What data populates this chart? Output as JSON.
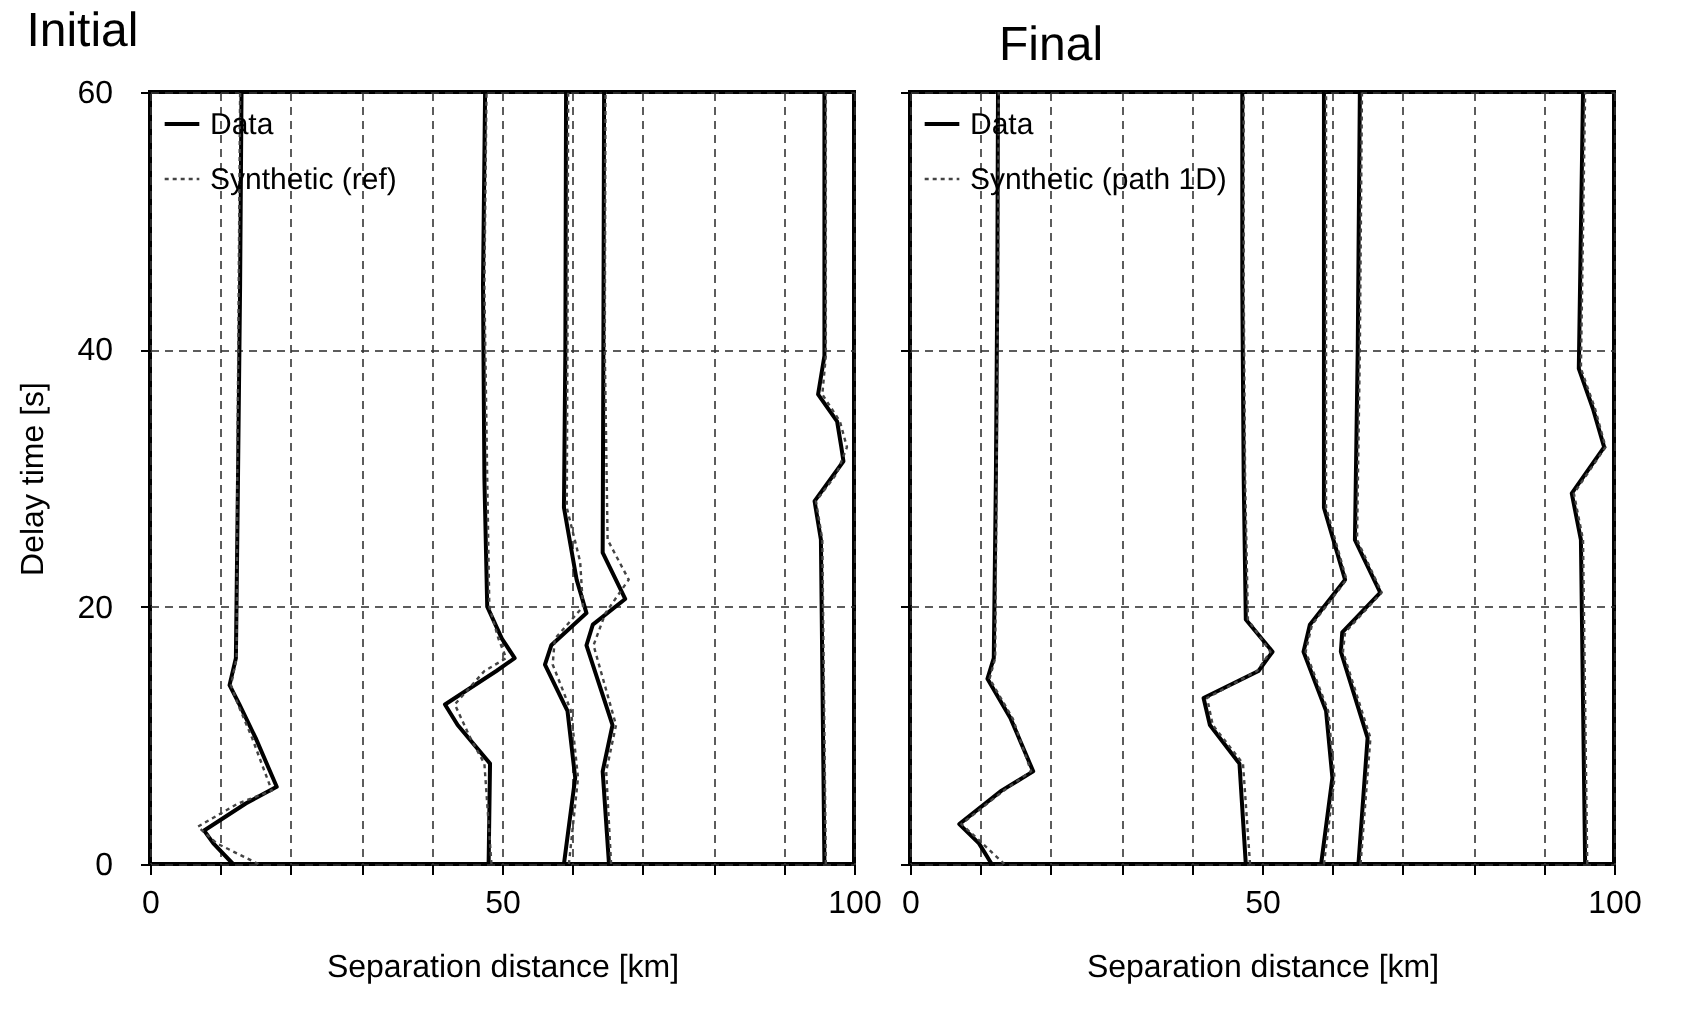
{
  "chart_data": [
    {
      "type": "line",
      "title": "Initial",
      "xlabel": "Separation distance [km]",
      "ylabel": "Delay time [s]",
      "xlim": [
        0,
        100
      ],
      "ylim": [
        0,
        60
      ],
      "xticks": [
        0,
        {
          "value": 10,
          "label": null
        },
        {
          "value": 20,
          "label": null
        },
        {
          "value": 30,
          "label": null
        },
        {
          "value": 40,
          "label": null
        },
        50,
        {
          "value": 60,
          "label": null
        },
        {
          "value": 70,
          "label": null
        },
        {
          "value": 80,
          "label": null
        },
        {
          "value": 90,
          "label": null
        },
        100
      ],
      "yticks": [
        0,
        20,
        40,
        60
      ],
      "grid": true,
      "legend": "top left",
      "series": [
        {
          "name": "Data",
          "color": "#000000",
          "line_style": "solid",
          "x": [
            11.8,
            9,
            7.7,
            13.6,
            18,
            15,
            12.7,
            11.3,
            12.2,
            12.5,
            12.8,
            13
          ],
          "values": [
            0,
            1.6,
            2.6,
            4.7,
            6.0,
            9.8,
            12.4,
            13.9,
            16,
            30,
            45,
            60
          ]
        },
        {
          "name": "Synthetic (ref)",
          "color": "#444444",
          "line_style": "dotted",
          "x": [
            15.4,
            9.5,
            6.8,
            12.5,
            17.3,
            14.5,
            12.5,
            11.5,
            12.3,
            12.4,
            12.6,
            12.8
          ],
          "values": [
            0,
            1.6,
            2.9,
            4.7,
            5.7,
            9.8,
            12.4,
            13.9,
            16,
            30,
            45,
            60
          ]
        },
        {
          "color": "#000000",
          "line_style": "solid",
          "x": [
            48.1,
            48.3,
            43.7,
            41.9,
            49.2,
            51.8,
            50,
            47.9,
            47.5,
            47.3,
            47.6
          ],
          "values": [
            0,
            7.8,
            10.8,
            12.4,
            15,
            16,
            17.5,
            20,
            30,
            45,
            60
          ]
        },
        {
          "color": "#444444",
          "line_style": "dotted",
          "x": [
            48.5,
            47.5,
            45.5,
            43.3,
            47.5,
            50.6,
            49.5,
            48.2,
            47.9,
            47.5,
            47.8
          ],
          "values": [
            0,
            7.8,
            9.8,
            12.4,
            15,
            16,
            17.5,
            20,
            30,
            45,
            60
          ]
        },
        {
          "color": "#000000",
          "line_style": "solid",
          "x": [
            58.8,
            60.4,
            59.3,
            56.1,
            57,
            62,
            60.6,
            58.8,
            59,
            59.1
          ],
          "values": [
            0,
            6.7,
            11.9,
            15.5,
            17,
            19.5,
            22.1,
            27.7,
            40,
            60
          ]
        },
        {
          "color": "#444444",
          "line_style": "dotted",
          "x": [
            59.5,
            60.8,
            59.8,
            57.2,
            57.5,
            61.5,
            61.1,
            59.2,
            59.3,
            59.4
          ],
          "values": [
            0,
            6.7,
            11.9,
            15.5,
            17.5,
            20,
            23.5,
            27.7,
            40,
            60
          ]
        },
        {
          "color": "#000000",
          "line_style": "solid",
          "x": [
            65.2,
            64.3,
            65.7,
            62,
            62.9,
            67.5,
            64.3,
            64.4,
            64.5
          ],
          "values": [
            0,
            7.2,
            10.8,
            17,
            18.6,
            20.6,
            24.2,
            40,
            60
          ]
        },
        {
          "color": "#444444",
          "line_style": "dotted",
          "x": [
            65.5,
            64.8,
            66.2,
            63,
            64.7,
            68,
            65,
            64.6,
            64.7
          ],
          "values": [
            0,
            7.2,
            10.8,
            17,
            19.5,
            22.1,
            25.2,
            40,
            60
          ]
        },
        {
          "color": "#000000",
          "line_style": "solid",
          "x": [
            95.8,
            95.3,
            94.4,
            98.5,
            98.2,
            97.6,
            94.9,
            95.8,
            95.8
          ],
          "values": [
            0,
            25.2,
            28.2,
            31.3,
            32.4,
            34.4,
            36.5,
            39.5,
            60
          ]
        },
        {
          "color": "#444444",
          "line_style": "dotted",
          "x": [
            96,
            95.5,
            94.6,
            97.5,
            99,
            98,
            95.5,
            96,
            96
          ],
          "values": [
            0,
            25.2,
            28.2,
            30.3,
            32.4,
            34.4,
            36.5,
            39.5,
            60
          ]
        }
      ]
    },
    {
      "type": "line",
      "title": "Final",
      "xlabel": "Separation distance [km]",
      "xlim": [
        0,
        100
      ],
      "ylim": [
        0,
        60
      ],
      "xticks": [
        0,
        {
          "value": 10,
          "label": null
        },
        {
          "value": 20,
          "label": null
        },
        {
          "value": 30,
          "label": null
        },
        {
          "value": 40,
          "label": null
        },
        50,
        {
          "value": 60,
          "label": null
        },
        {
          "value": 70,
          "label": null
        },
        {
          "value": 80,
          "label": null
        },
        {
          "value": 90,
          "label": null
        },
        100
      ],
      "yticks": [
        0,
        20,
        40,
        60
      ],
      "tick_labels": "x",
      "grid": true,
      "legend": "top left",
      "series": [
        {
          "name": "Data",
          "color": "#000000",
          "line_style": "solid",
          "x": [
            11.6,
            9.8,
            7,
            13,
            17.5,
            14.3,
            11,
            11.9,
            12.2,
            12.4,
            12.5
          ],
          "values": [
            0,
            1.6,
            3.1,
            5.7,
            7.2,
            11.3,
            14.4,
            16,
            30,
            45,
            60
          ]
        },
        {
          "name": "Synthetic (path 1D)",
          "color": "#444444",
          "line_style": "dotted",
          "x": [
            13.4,
            10.3,
            7.3,
            13.3,
            17.2,
            14.6,
            11.3,
            12.1,
            12.3,
            12.5,
            12.6
          ],
          "values": [
            0,
            1.6,
            3.1,
            5.7,
            7.2,
            11.3,
            14.4,
            16,
            30,
            45,
            60
          ]
        },
        {
          "color": "#000000",
          "line_style": "solid",
          "x": [
            47.7,
            46.8,
            42.6,
            41.7,
            49.5,
            51.5,
            47.7,
            47.4,
            47.2,
            47.2
          ],
          "values": [
            0,
            7.8,
            10.8,
            12.9,
            15,
            16.5,
            19,
            30,
            45,
            60
          ]
        },
        {
          "color": "#444444",
          "line_style": "dotted",
          "x": [
            48.3,
            47.3,
            43,
            42.2,
            49.3,
            51.2,
            48,
            47.6,
            47.4,
            47.4
          ],
          "values": [
            0,
            7.8,
            10.8,
            12.9,
            15,
            16.5,
            19,
            30,
            45,
            60
          ]
        },
        {
          "color": "#000000",
          "line_style": "solid",
          "x": [
            58.4,
            60,
            59.1,
            55.9,
            56.8,
            61.8,
            58.8,
            58.8,
            58.8
          ],
          "values": [
            0,
            6.7,
            11.9,
            16.5,
            18.6,
            22.1,
            27.7,
            40,
            60
          ]
        },
        {
          "color": "#444444",
          "line_style": "dotted",
          "x": [
            58.8,
            60.3,
            59.4,
            56.2,
            57.1,
            62,
            59.1,
            59.1,
            59.1
          ],
          "values": [
            0,
            6.7,
            11.9,
            16.5,
            18.6,
            22.1,
            27.7,
            40,
            60
          ]
        },
        {
          "color": "#000000",
          "line_style": "solid",
          "x": [
            63.7,
            65,
            61.2,
            61.4,
            66.8,
            63.2,
            63.6,
            63.9
          ],
          "values": [
            0,
            9.8,
            16.5,
            18,
            21.1,
            25.2,
            40,
            60
          ]
        },
        {
          "color": "#444444",
          "line_style": "dotted",
          "x": [
            64,
            65.4,
            61.5,
            61.8,
            67,
            63.5,
            63.9,
            64.2
          ],
          "values": [
            0,
            9.8,
            16.5,
            18,
            21.1,
            25.2,
            40,
            60
          ]
        },
        {
          "color": "#000000",
          "line_style": "solid",
          "x": [
            95.9,
            95.3,
            94,
            98.6,
            97,
            95,
            95.6
          ],
          "values": [
            0,
            25.2,
            28.8,
            32.4,
            35.4,
            38.5,
            60
          ]
        },
        {
          "color": "#444444",
          "line_style": "dotted",
          "x": [
            96.2,
            95.6,
            94.3,
            98.8,
            97.3,
            95.3,
            95.9
          ],
          "values": [
            0,
            25.2,
            28.8,
            32.4,
            35.4,
            38.5,
            60
          ]
        }
      ]
    }
  ]
}
